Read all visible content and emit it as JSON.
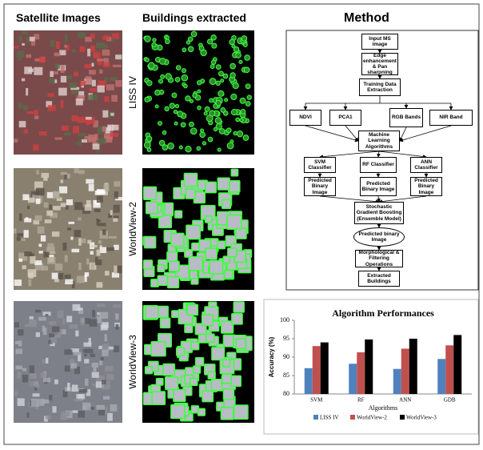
{
  "columns": {
    "satellite": "Satellite Images",
    "extracted": "Buildings extracted"
  },
  "rows": [
    "LISS IV",
    "WorldView-2",
    "WorldView-3"
  ],
  "flowchart": {
    "title": "Method",
    "nodes": [
      "Input MS image",
      "Edge enhancement & Pan sharpning",
      "Training Data Extraction",
      "NDVI",
      "PCA1",
      "RGB Bands",
      "NIR Band",
      "Machine Learning Algorithms",
      "SVM Classifier",
      "RF Classifier",
      "ANN Classifier",
      "Predicted Binary Image",
      "Predicted Binary Image",
      "Predicted Binary Image",
      "Stochastic Gradient Boosting (Ensemble Model)",
      "Predicted binary Image",
      "Morphological & Filtering Operations",
      "Extracted Buildings"
    ]
  },
  "chart_data": {
    "type": "bar",
    "title": "Algorithm Performances",
    "x_label": "Algorithms",
    "y_label": "Accuracy (%)",
    "categories": [
      "SVM",
      "RF",
      "ANN",
      "GDB"
    ],
    "series": [
      {
        "name": "LISS IV",
        "color": "#4f81bd",
        "values": [
          87,
          88.2,
          86.8,
          89.5
        ]
      },
      {
        "name": "WorldView-2",
        "color": "#c0504d",
        "values": [
          93,
          91.3,
          92.3,
          93.2
        ]
      },
      {
        "name": "WorldView-3",
        "color": "#000000",
        "values": [
          94,
          94.8,
          95,
          96
        ]
      }
    ],
    "ylim": [
      80,
      100
    ],
    "yticks": [
      80,
      85,
      90,
      95,
      100
    ]
  }
}
